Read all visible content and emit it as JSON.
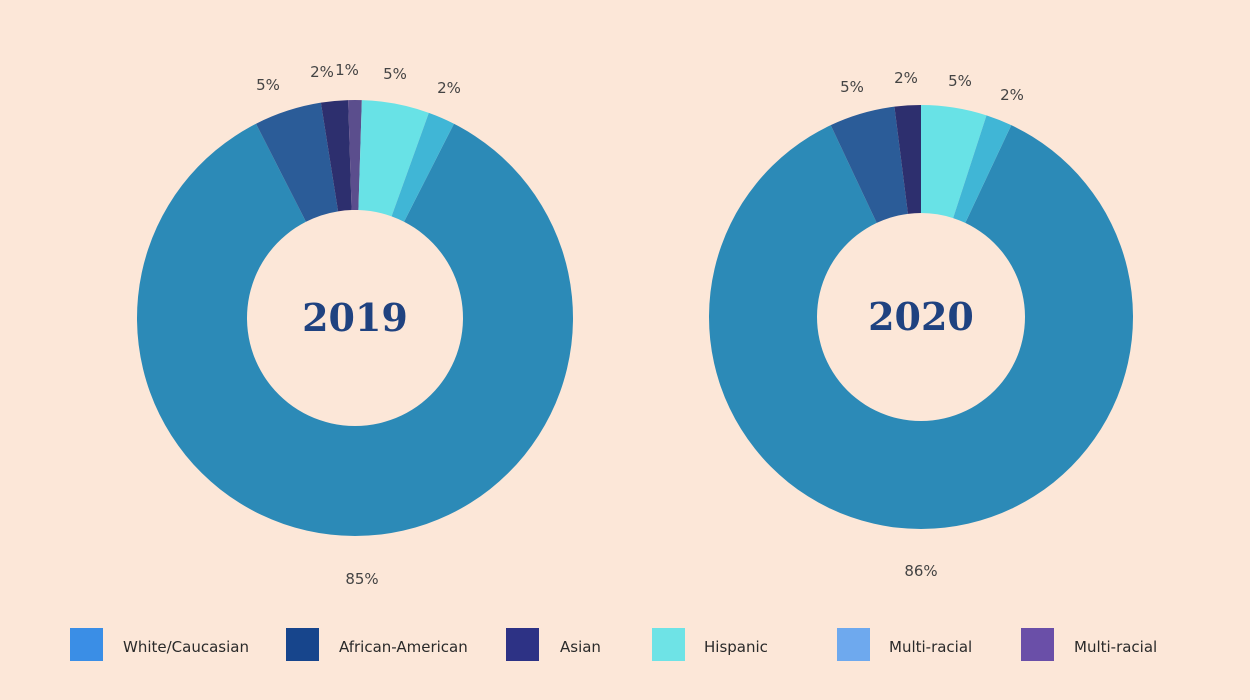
{
  "chart_data": [
    {
      "type": "pie",
      "title": "2019",
      "categories": [
        "White/Caucasian",
        "African-American",
        "Asian",
        "Multi-racial",
        "Hispanic",
        "Multi-racial"
      ],
      "values": [
        85,
        5,
        2,
        1,
        5,
        2
      ],
      "labels": [
        "85%",
        "5%",
        "2%",
        "1%",
        "5%",
        "2%"
      ],
      "colors": [
        "#2c8ab7",
        "#2b5c98",
        "#2d2f6e",
        "#5b4e8d",
        "#68e2e6",
        "#40b6d6"
      ]
    },
    {
      "type": "pie",
      "title": "2020",
      "categories": [
        "White/Caucasian",
        "African-American",
        "Asian",
        "Hispanic",
        "Multi-racial"
      ],
      "values": [
        86,
        5,
        2,
        5,
        2
      ],
      "labels": [
        "86%",
        "5%",
        "2%",
        "5%",
        "2%"
      ],
      "colors": [
        "#2c8ab7",
        "#2b5c98",
        "#2d2f6e",
        "#68e2e6",
        "#40b6d6"
      ]
    }
  ],
  "legend": [
    {
      "label": "White/Caucasian",
      "color": "#3a8ee6"
    },
    {
      "label": "African-American",
      "color": "#17458c"
    },
    {
      "label": "Asian",
      "color": "#2d3285"
    },
    {
      "label": "Hispanic",
      "color": "#6ee3e6"
    },
    {
      "label": "Multi-racial",
      "color": "#6ea9ee"
    },
    {
      "label": "Multi-racial",
      "color": "#6a4fa8"
    }
  ]
}
